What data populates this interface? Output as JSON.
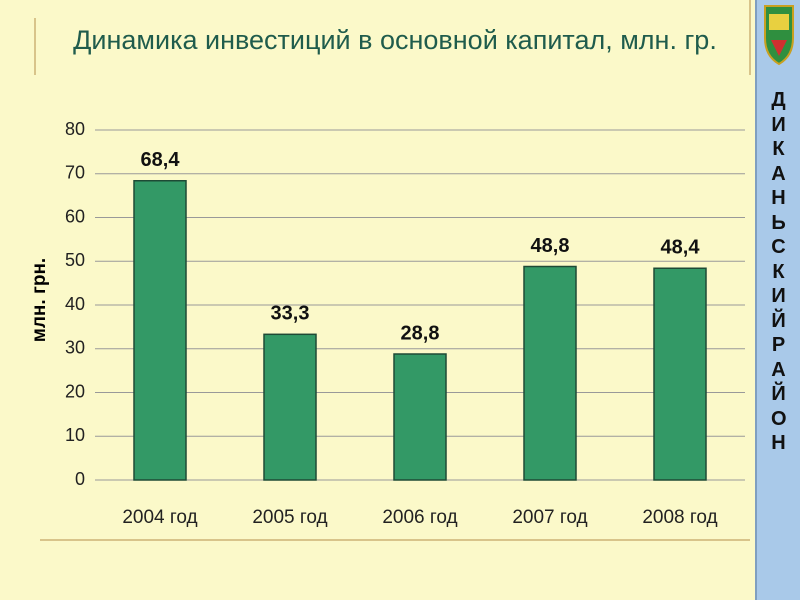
{
  "chart_data": {
    "type": "bar",
    "title": "Динамика инвестиций в основной капитал, млн. гр.",
    "y_label": "млн. грн.",
    "categories": [
      "2004 год",
      "2005 год",
      "2006 год",
      "2007 год",
      "2008 год"
    ],
    "values": [
      68.4,
      33.3,
      28.8,
      48.8,
      48.4
    ],
    "value_labels": [
      "68,4",
      "33,3",
      "28,8",
      "48,8",
      "48,4"
    ],
    "color": "#339966",
    "ylim": [
      0,
      80
    ],
    "yticks": [
      0,
      10,
      20,
      30,
      40,
      50,
      60,
      70,
      80
    ],
    "grid": true
  },
  "sidebar": {
    "text": "ДИКАНЬСКИЙ РАЙОН"
  }
}
